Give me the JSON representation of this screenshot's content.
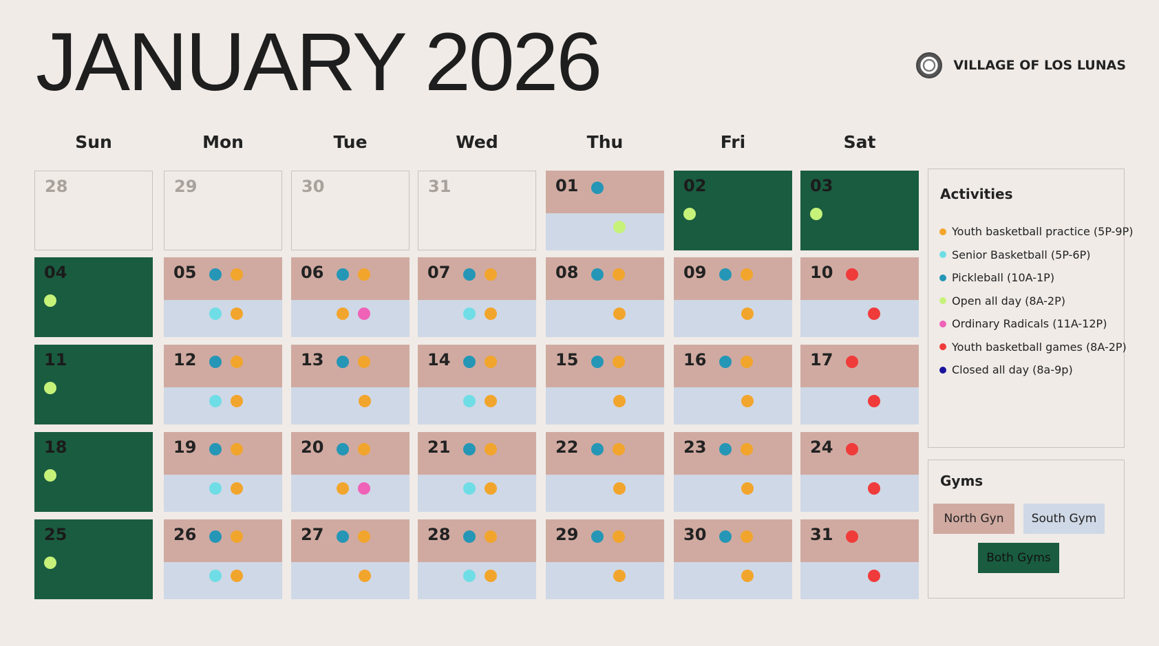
{
  "header": {
    "title": "JANUARY 2026",
    "organization": "VILLAGE OF LOS LUNAS",
    "logo_icon": "village-seal-icon"
  },
  "weekdays": [
    "Sun",
    "Mon",
    "Tue",
    "Wed",
    "Thu",
    "Fri",
    "Sat"
  ],
  "colors": {
    "north_gym": "#d0aaa1",
    "south_gym": "#cfd8e6",
    "both_gyms": "#1a5c40",
    "youth_practice": "#f2a52c",
    "senior_basketball": "#6fdde6",
    "pickleball": "#2596b6",
    "open_all_day": "#c6f27a",
    "ordinary_radicals": "#ef62b8",
    "youth_games": "#f03b3b",
    "closed_all_day": "#1b139e"
  },
  "legend": {
    "title": "Activities",
    "items": [
      {
        "key": "youth_practice",
        "label": "Youth basketball practice (5P-9P)"
      },
      {
        "key": "senior_basketball",
        "label": "Senior Basketball (5P-6P)"
      },
      {
        "key": "pickleball",
        "label": "Pickleball (10A-1P)"
      },
      {
        "key": "open_all_day",
        "label": "Open all day (8A-2P)"
      },
      {
        "key": "ordinary_radicals",
        "label": "Ordinary Radicals (11A-12P)"
      },
      {
        "key": "youth_games",
        "label": "Youth basketball games (8A-2P)"
      },
      {
        "key": "closed_all_day",
        "label": "Closed all day (8a-9p)"
      }
    ]
  },
  "gyms": {
    "title": "Gyms",
    "north": "North Gyn",
    "south": "South Gym",
    "both": "Both Gyms"
  },
  "weeks": [
    [
      {
        "day": "28",
        "type": "outside"
      },
      {
        "day": "29",
        "type": "outside"
      },
      {
        "day": "30",
        "type": "outside"
      },
      {
        "day": "31",
        "type": "outside"
      },
      {
        "day": "01",
        "type": "split",
        "north": [
          "pickleball"
        ],
        "south": [
          "open_all_day"
        ]
      },
      {
        "day": "02",
        "type": "both",
        "north": [
          "open_all_day"
        ]
      },
      {
        "day": "03",
        "type": "both",
        "north": [
          "open_all_day"
        ]
      }
    ],
    [
      {
        "day": "04",
        "type": "both",
        "north": [
          "open_all_day"
        ]
      },
      {
        "day": "05",
        "type": "split",
        "north": [
          "pickleball",
          "youth_practice"
        ],
        "south": [
          "senior_basketball",
          "youth_practice"
        ]
      },
      {
        "day": "06",
        "type": "split",
        "north": [
          "pickleball",
          "youth_practice"
        ],
        "south": [
          "youth_practice",
          "ordinary_radicals"
        ]
      },
      {
        "day": "07",
        "type": "split",
        "north": [
          "pickleball",
          "youth_practice"
        ],
        "south": [
          "senior_basketball",
          "youth_practice"
        ]
      },
      {
        "day": "08",
        "type": "split",
        "north": [
          "pickleball",
          "youth_practice"
        ],
        "south": [
          "youth_practice"
        ]
      },
      {
        "day": "09",
        "type": "split",
        "north": [
          "pickleball",
          "youth_practice"
        ],
        "south": [
          "youth_practice"
        ]
      },
      {
        "day": "10",
        "type": "split",
        "north": [
          "youth_games"
        ],
        "south": [
          "youth_games"
        ]
      }
    ],
    [
      {
        "day": "11",
        "type": "both",
        "north": [
          "open_all_day"
        ]
      },
      {
        "day": "12",
        "type": "split",
        "north": [
          "pickleball",
          "youth_practice"
        ],
        "south": [
          "senior_basketball",
          "youth_practice"
        ]
      },
      {
        "day": "13",
        "type": "split",
        "north": [
          "pickleball",
          "youth_practice"
        ],
        "south": [
          "youth_practice"
        ]
      },
      {
        "day": "14",
        "type": "split",
        "north": [
          "pickleball",
          "youth_practice"
        ],
        "south": [
          "senior_basketball",
          "youth_practice"
        ]
      },
      {
        "day": "15",
        "type": "split",
        "north": [
          "pickleball",
          "youth_practice"
        ],
        "south": [
          "youth_practice"
        ]
      },
      {
        "day": "16",
        "type": "split",
        "north": [
          "pickleball",
          "youth_practice"
        ],
        "south": [
          "youth_practice"
        ]
      },
      {
        "day": "17",
        "type": "split",
        "north": [
          "youth_games"
        ],
        "south": [
          "youth_games"
        ]
      }
    ],
    [
      {
        "day": "18",
        "type": "both",
        "north": [
          "open_all_day"
        ]
      },
      {
        "day": "19",
        "type": "split",
        "north": [
          "pickleball",
          "youth_practice"
        ],
        "south": [
          "senior_basketball",
          "youth_practice"
        ]
      },
      {
        "day": "20",
        "type": "split",
        "north": [
          "pickleball",
          "youth_practice"
        ],
        "south": [
          "youth_practice",
          "ordinary_radicals"
        ]
      },
      {
        "day": "21",
        "type": "split",
        "north": [
          "pickleball",
          "youth_practice"
        ],
        "south": [
          "senior_basketball",
          "youth_practice"
        ]
      },
      {
        "day": "22",
        "type": "split",
        "north": [
          "pickleball",
          "youth_practice"
        ],
        "south": [
          "youth_practice"
        ]
      },
      {
        "day": "23",
        "type": "split",
        "north": [
          "pickleball",
          "youth_practice"
        ],
        "south": [
          "youth_practice"
        ]
      },
      {
        "day": "24",
        "type": "split",
        "north": [
          "youth_games"
        ],
        "south": [
          "youth_games"
        ]
      }
    ],
    [
      {
        "day": "25",
        "type": "both",
        "north": [
          "open_all_day"
        ]
      },
      {
        "day": "26",
        "type": "split",
        "north": [
          "pickleball",
          "youth_practice"
        ],
        "south": [
          "senior_basketball",
          "youth_practice"
        ]
      },
      {
        "day": "27",
        "type": "split",
        "north": [
          "pickleball",
          "youth_practice"
        ],
        "south": [
          "youth_practice"
        ]
      },
      {
        "day": "28",
        "type": "split",
        "north": [
          "pickleball",
          "youth_practice"
        ],
        "south": [
          "senior_basketball",
          "youth_practice"
        ]
      },
      {
        "day": "29",
        "type": "split",
        "north": [
          "pickleball",
          "youth_practice"
        ],
        "south": [
          "youth_practice"
        ]
      },
      {
        "day": "30",
        "type": "split",
        "north": [
          "pickleball",
          "youth_practice"
        ],
        "south": [
          "youth_practice"
        ]
      },
      {
        "day": "31",
        "type": "split",
        "north": [
          "youth_games"
        ],
        "south": [
          "youth_games"
        ]
      }
    ]
  ]
}
